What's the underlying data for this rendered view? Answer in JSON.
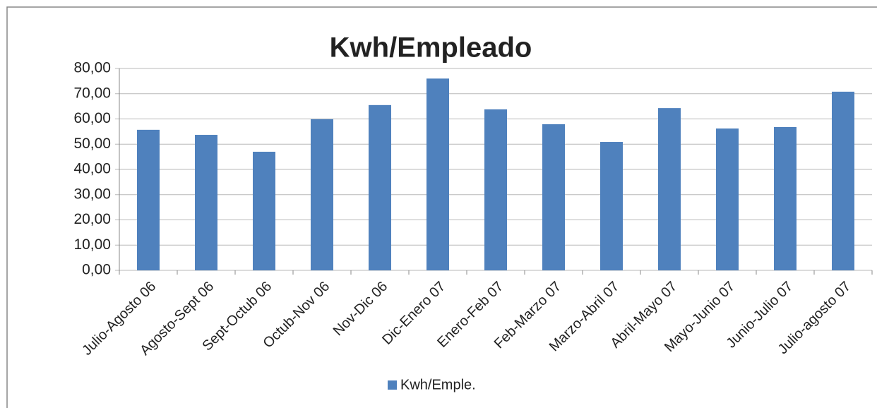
{
  "chart_data": {
    "type": "bar",
    "title": "Kwh/Empleado",
    "categories": [
      "Julio-Agosto 06",
      "Agosto-Sept 06",
      "Sept-Octub 06",
      "Octub-Nov 06",
      "Nov-Dic 06",
      "Dic-Enero 07",
      "Enero-Feb 07",
      "Feb-Marzo 07",
      "Marzo-Abril 07",
      "Abril-Mayo 07",
      "Mayo-Junio 07",
      "Junio-Julio 07",
      "Julio-agosto 07"
    ],
    "series": [
      {
        "name": "Kwh/Emple.",
        "color": "#4f81bd",
        "values": [
          55.7,
          53.7,
          47,
          59.9,
          65.5,
          76,
          63.8,
          57.9,
          50.9,
          64.3,
          56.2,
          56.8,
          70.8
        ]
      }
    ],
    "ylim": [
      0,
      80
    ],
    "yticks": [
      {
        "value": 0,
        "label": "0,00"
      },
      {
        "value": 10,
        "label": "10,00"
      },
      {
        "value": 20,
        "label": "20,00"
      },
      {
        "value": 30,
        "label": "30,00"
      },
      {
        "value": 40,
        "label": "40,00"
      },
      {
        "value": 50,
        "label": "50,00"
      },
      {
        "value": 60,
        "label": "60,00"
      },
      {
        "value": 70,
        "label": "70,00"
      },
      {
        "value": 80,
        "label": "80,00"
      }
    ],
    "grid": true,
    "legend": "bottom"
  }
}
